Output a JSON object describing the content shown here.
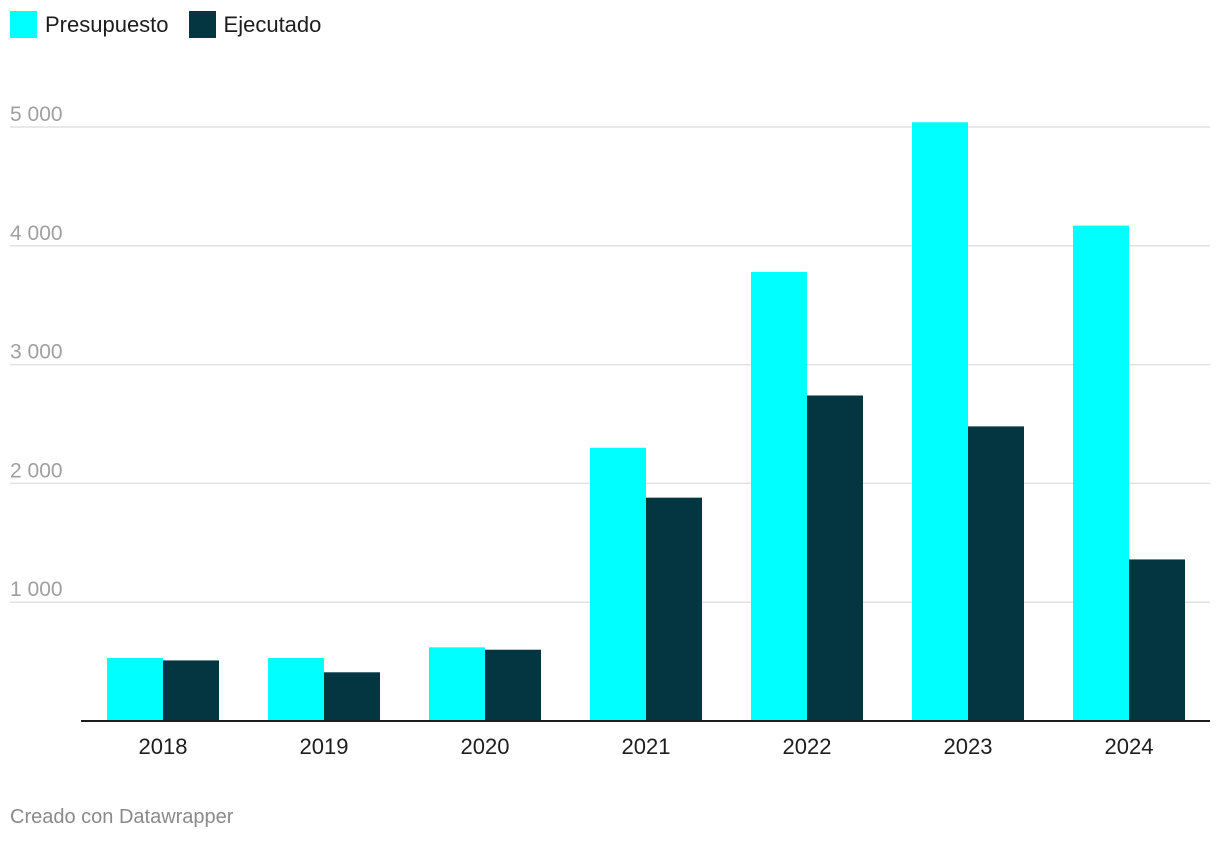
{
  "legend": [
    {
      "name": "Presupuesto",
      "color": "#00ffff"
    },
    {
      "name": "Ejecutado",
      "color": "#033641"
    }
  ],
  "footer": {
    "credit": "Creado con Datawrapper"
  },
  "chart_data": {
    "type": "bar",
    "title": "",
    "xlabel": "",
    "ylabel": "",
    "categories": [
      "2018",
      "2019",
      "2020",
      "2021",
      "2022",
      "2023",
      "2024"
    ],
    "series": [
      {
        "name": "Presupuesto",
        "color": "#00ffff",
        "values": [
          530,
          530,
          620,
          2300,
          3780,
          5040,
          4170
        ]
      },
      {
        "name": "Ejecutado",
        "color": "#033641",
        "values": [
          510,
          410,
          600,
          1880,
          2740,
          2480,
          1360
        ]
      }
    ],
    "ylim": [
      0,
      5000
    ],
    "yticks": [
      1000,
      2000,
      3000,
      4000,
      5000
    ],
    "ytick_labels": [
      "1 000",
      "2 000",
      "3 000",
      "4 000",
      "5 000"
    ],
    "grid": true,
    "legend_position": "top-left"
  }
}
